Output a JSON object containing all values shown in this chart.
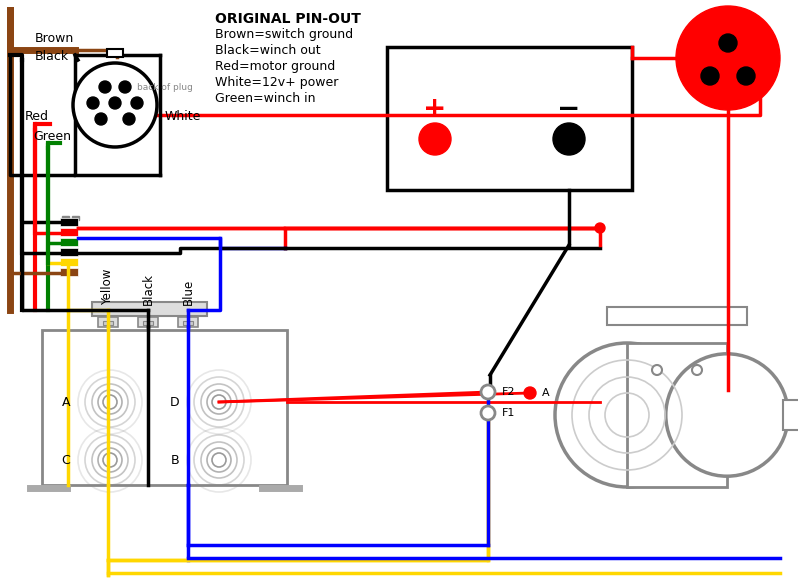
{
  "bg_color": "#ffffff",
  "legend_lines": [
    "ORIGINAL PIN-OUT",
    "Brown=switch ground",
    "Black=winch out",
    "Red=motor ground",
    "White=12v+ power",
    "Green=winch in"
  ],
  "relay_wire_labels": [
    "Yellow",
    "Black",
    "Blue"
  ],
  "solenoid_labels": [
    "A",
    "D",
    "C",
    "B"
  ],
  "motor_terminal_labels": [
    "F2",
    "F1",
    "A"
  ],
  "colors": {
    "brown": "#8B4513",
    "black": "#000000",
    "red": "#FF0000",
    "green": "#008000",
    "yellow": "#FFD700",
    "blue": "#0000FF",
    "gray": "#888888",
    "light_gray": "#cccccc",
    "med_gray": "#aaaaaa"
  }
}
